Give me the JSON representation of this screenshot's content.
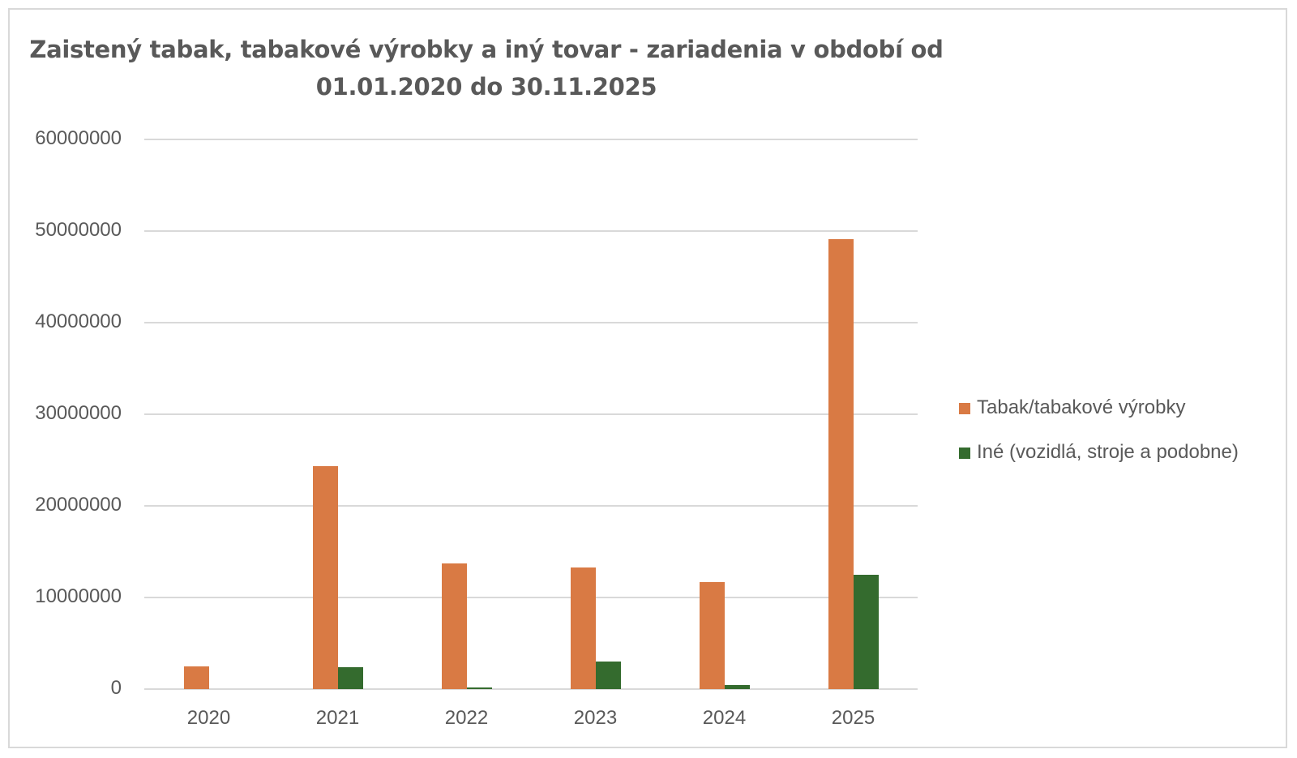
{
  "chart_data": {
    "type": "bar",
    "title": "Zaistený tabak, tabakové výrobky a iný tovar - zariadenia v období od 01.01.2020 do 30.11.2025",
    "title_lines": [
      "Zaistený tabak, tabakové výrobky a iný tovar - zariadenia v období od",
      "01.01.2020 do 30.11.2025"
    ],
    "categories": [
      "2020",
      "2021",
      "2022",
      "2023",
      "2024",
      "2025"
    ],
    "series": [
      {
        "name": "Tabak/tabakové výrobky",
        "color": "#D97A44",
        "values": [
          2500000,
          24300000,
          13700000,
          13300000,
          11700000,
          49100000
        ]
      },
      {
        "name": "Iné (vozidlá, stroje a podobne)",
        "color": "#346B2E",
        "values": [
          0,
          2400000,
          200000,
          3000000,
          400000,
          12500000
        ]
      }
    ],
    "xlabel": "",
    "ylabel": "",
    "ylim": [
      0,
      60000000
    ],
    "yticks": [
      "0",
      "10000000",
      "20000000",
      "30000000",
      "40000000",
      "50000000",
      "60000000"
    ],
    "grid": true,
    "legend_position": "right"
  }
}
